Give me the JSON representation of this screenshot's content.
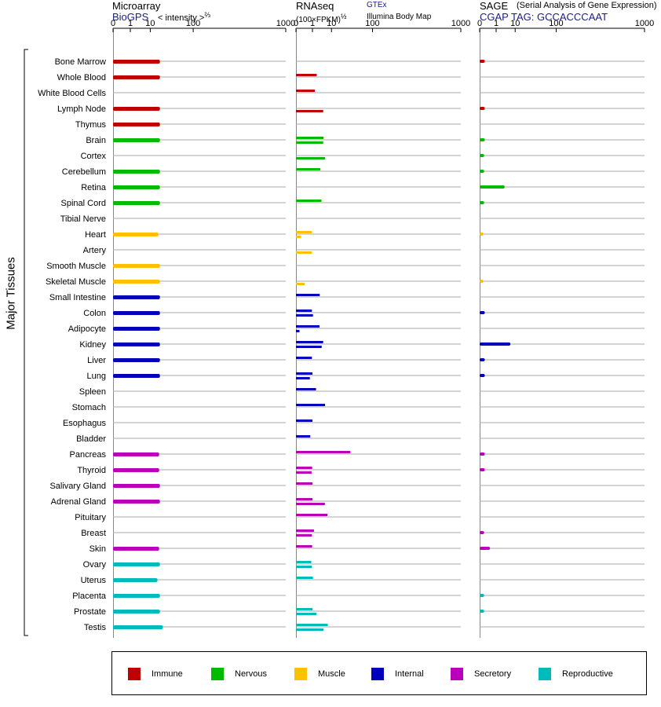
{
  "panels": {
    "microarray": {
      "title": "Microarray",
      "source": "BioGPS",
      "unit_text": "< intensity >",
      "unit_exp": "⅔"
    },
    "rnaseq": {
      "title": "RNAseq",
      "unit_text": "(100×FPKM)",
      "unit_exp": "½",
      "src_top": "GTEx",
      "src_bottom": "Illumina Body Map"
    },
    "sage": {
      "title": "SAGE",
      "subtitle": "(Serial Analysis of Gene Expression)",
      "tag": "CGAP TAG: GCCACCCAAT"
    }
  },
  "y_axis_label": "Major Tissues",
  "colors": {
    "Immune": "#c00000",
    "Nervous": "#00bb00",
    "Muscle": "#ffc000",
    "Internal": "#0000bb",
    "Secretory": "#bb00bb",
    "Reproductive": "#00bbbb"
  },
  "legend": [
    {
      "label": "Immune",
      "color": "#c00000"
    },
    {
      "label": "Nervous",
      "color": "#00bb00"
    },
    {
      "label": "Muscle",
      "color": "#ffc000"
    },
    {
      "label": "Internal",
      "color": "#0000bb"
    },
    {
      "label": "Secretory",
      "color": "#bb00bb"
    },
    {
      "label": "Reproductive",
      "color": "#00bbbb"
    }
  ],
  "chart_data": {
    "type": "bar",
    "orientation": "horizontal",
    "x_scale": "power",
    "tick_labels": [
      "0",
      "1",
      "10",
      "100",
      "1000"
    ],
    "xlim": [
      0,
      1000
    ],
    "categories": [
      "Bone Marrow",
      "Whole Blood",
      "White Blood Cells",
      "Lymph Node",
      "Thymus",
      "Brain",
      "Cortex",
      "Cerebellum",
      "Retina",
      "Spinal Cord",
      "Tibial Nerve",
      "Heart",
      "Artery",
      "Smooth Muscle",
      "Skeletal Muscle",
      "Small Intestine",
      "Colon",
      "Adipocyte",
      "Kidney",
      "Liver",
      "Lung",
      "Spleen",
      "Stomach",
      "Esophagus",
      "Bladder",
      "Pancreas",
      "Thyroid",
      "Salivary Gland",
      "Adrenal Gland",
      "Pituitary",
      "Breast",
      "Skin",
      "Ovary",
      "Uterus",
      "Placenta",
      "Prostate",
      "Testis"
    ],
    "groups": [
      "Immune",
      "Immune",
      "Immune",
      "Immune",
      "Immune",
      "Nervous",
      "Nervous",
      "Nervous",
      "Nervous",
      "Nervous",
      "Nervous",
      "Muscle",
      "Muscle",
      "Muscle",
      "Muscle",
      "Internal",
      "Internal",
      "Internal",
      "Internal",
      "Internal",
      "Internal",
      "Internal",
      "Internal",
      "Internal",
      "Internal",
      "Secretory",
      "Secretory",
      "Secretory",
      "Secretory",
      "Secretory",
      "Secretory",
      "Secretory",
      "Reproductive",
      "Reproductive",
      "Reproductive",
      "Reproductive",
      "Reproductive"
    ],
    "series": [
      {
        "panel": "microarray",
        "values": [
          20,
          20,
          null,
          20,
          20,
          20,
          null,
          20,
          20,
          20,
          null,
          18,
          null,
          20,
          20,
          20,
          20,
          20,
          20,
          20,
          20,
          null,
          null,
          null,
          null,
          19,
          19,
          20,
          20,
          null,
          null,
          19,
          20,
          17,
          20,
          20,
          24
        ]
      },
      {
        "panel": "rnaseq_gtex",
        "values": [
          null,
          2,
          1.5,
          null,
          null,
          4.7,
          null,
          3.2,
          null,
          3.7,
          null,
          0.9,
          null,
          null,
          null,
          3,
          0.9,
          2.9,
          4.5,
          0.9,
          1,
          1.8,
          5.5,
          1,
          0.65,
          36,
          0.95,
          1,
          1,
          7,
          1.3,
          0.95,
          0.8,
          1.1,
          null,
          1,
          7.2
        ]
      },
      {
        "panel": "rnaseq_ibm",
        "values": [
          null,
          null,
          null,
          4.5,
          null,
          4.5,
          5.5,
          null,
          null,
          null,
          null,
          0.03,
          0.9,
          null,
          0.15,
          null,
          1.1,
          0.01,
          3.8,
          null,
          0.6,
          null,
          null,
          null,
          null,
          null,
          0.85,
          null,
          5.4,
          null,
          0.9,
          null,
          0.9,
          null,
          null,
          1.9,
          4.7
        ]
      },
      {
        "panel": "sage",
        "values": [
          0.03,
          null,
          null,
          0.03,
          null,
          0.03,
          0.02,
          0.02,
          3.5,
          0.02,
          null,
          0.01,
          null,
          null,
          0.01,
          null,
          0.03,
          null,
          6.5,
          0.03,
          0.03,
          null,
          null,
          null,
          null,
          0.03,
          0.03,
          null,
          null,
          null,
          0.02,
          0.25,
          null,
          null,
          0.02,
          0.02,
          null
        ]
      }
    ]
  }
}
